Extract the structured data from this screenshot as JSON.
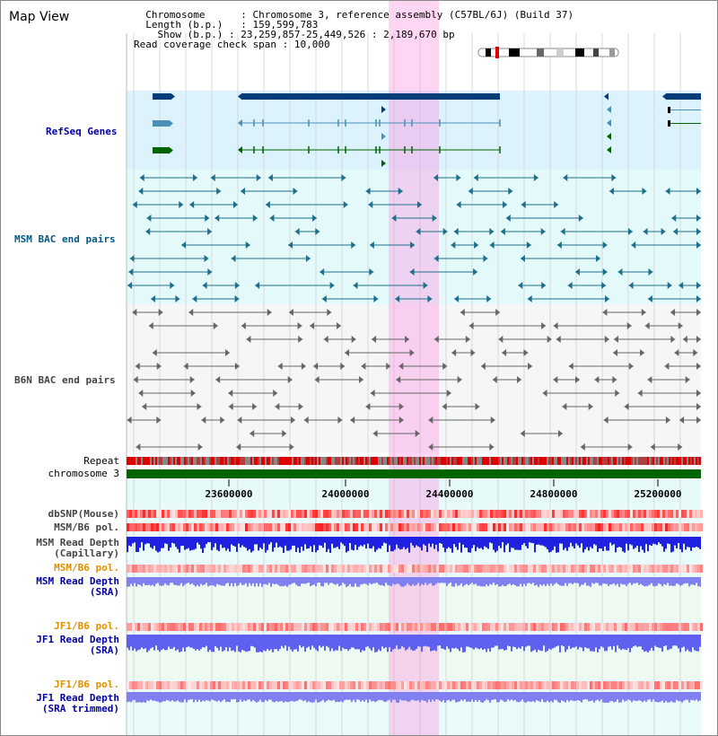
{
  "map_title": "Map View",
  "info": {
    "chromosome_label": "Chromosome",
    "chromosome_value": "Chromosome 3, reference assembly (C57BL/6J) (Build 37)",
    "length_label": "Length (b.p.)",
    "length_value": "159,599,783",
    "show_label": "Show (b.p.)",
    "show_value": "23,259,857-25,449,526 : 2,189,670 bp",
    "coverage_label": "Read coverage check span",
    "coverage_value": "10,000"
  },
  "tracks": {
    "refseq": "RefSeq Genes",
    "msm_bac": "MSM BAC end pairs",
    "b6n_bac": "B6N BAC end pairs",
    "repeat": "Repeat",
    "chromosome": "chromosome 3",
    "dbsnp": "dbSNP(Mouse)",
    "msm_b6_pol_1": "MSM/B6 pol.",
    "msm_read_depth_cap_1": "MSM Read Depth",
    "msm_read_depth_cap_2": "(Capillary)",
    "msm_b6_pol_2": "MSM/B6 pol.",
    "msm_read_depth_sra_1": "MSM Read Depth",
    "msm_read_depth_sra_2": "(SRA)",
    "jf1_b6_pol_1": "JF1/B6 pol.",
    "jf1_read_depth_sra_1": "JF1 Read Depth",
    "jf1_read_depth_sra_2": "(SRA)",
    "jf1_b6_pol_2": "JF1/B6 pol.",
    "jf1_read_depth_trim_1": "JF1 Read Depth",
    "jf1_read_depth_trim_2": "(SRA trimmed)"
  },
  "axis_ticks": [
    "23600000",
    "24000000",
    "24400000",
    "24800000",
    "25200000"
  ],
  "colors": {
    "gene_blue": "#063c78",
    "gene_light": "#4a90b8",
    "gene_green": "#006400",
    "msm_label": "#005a82",
    "refseq_label": "#0000a0",
    "orange_label": "#e09000",
    "highlight": "#ff88e0",
    "chromosome_bar": "#006400"
  }
}
